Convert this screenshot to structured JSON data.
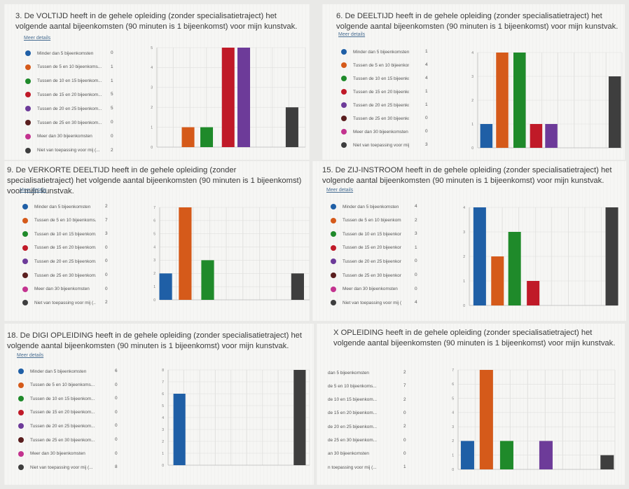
{
  "common": {
    "meer_details": "Meer details",
    "categories": [
      "Minder dan 5 bijeenkomsten",
      "Tussen de 5 en 10 bijeenkoms...",
      "Tussen de 10 en 15 bijeenkom...",
      "Tussen de 15 en 20 bijeenkom...",
      "Tussen de 20 en 25 bijeenkom...",
      "Tussen de 25 en 30 bijeenkom...",
      "Meer dan 30 bijeenkomsten",
      "Niet van toepassing voor mij (..."
    ],
    "colors": [
      "#1f5fa6",
      "#d55a1a",
      "#1f8a2a",
      "#c01a28",
      "#6d3b99",
      "#5a1e1e",
      "#c3338f",
      "#3e3e3e"
    ]
  },
  "chart_data": [
    {
      "type": "bar",
      "title": "3. De VOLTIJD heeft in de gehele opleiding (zonder specialisatietraject) het volgende aantal bijeenkomsten (90 minuten is 1 bijeenkomst) voor mijn kunstvak.",
      "categories": [
        "Minder dan 5 bijeenkomsten",
        "Tussen de 5 en 10 bijeenkoms...",
        "Tussen de 10 en 15 bijeenkom...",
        "Tussen de 15 en 20 bijeenkom...",
        "Tussen de 20 en 25 bijeenkom...",
        "Tussen de 25 en 30 bijeenkom...",
        "Meer dan 30 bijeenkomsten",
        "Niet van toepassing voor mij (..."
      ],
      "values": [
        0,
        1,
        1,
        5,
        5,
        0,
        0,
        2
      ],
      "ylim": [
        0,
        5
      ],
      "yticks": [
        "0",
        "1",
        "2",
        "3",
        "4",
        "5"
      ],
      "grid": true
    },
    {
      "type": "bar",
      "title": "6. De DEELTIJD heeft in de gehele opleiding (zonder specialisatietraject) het volgende aantal bijeenkomsten (90 minuten is 1 bijeenkomst) voor mijn kunstvak.",
      "categories": [
        "Minder dan 5 bijeenkomsten",
        "Tussen de 5 en 10 bijeenkoms...",
        "Tussen de 10 en 15 bijeenkom...",
        "Tussen de 15 en 20 bijeenkom...",
        "Tussen de 20 en 25 bijeenkom...",
        "Tussen de 25 en 30 bijeenkom...",
        "Meer dan 30 bijeenkomsten",
        "Niet van toepassing voor mij (..."
      ],
      "values": [
        1,
        4,
        4,
        1,
        1,
        0,
        0,
        3
      ],
      "ylim": [
        0,
        4
      ],
      "yticks": [
        "0",
        "1",
        "2",
        "3",
        "4"
      ],
      "grid": true
    },
    {
      "type": "bar",
      "title": "9. De VERKORTE DEELTIJD heeft in de gehele opleiding (zonder specialisatietraject) het volgende aantal bijeenkomsten (90 minuten is 1 bijeenkomst) voor mijn kunstvak.",
      "categories": [
        "Minder dan 5 bijeenkomsten",
        "Tussen de 5 en 10 bijeenkoms...",
        "Tussen de 10 en 15 bijeenkom...",
        "Tussen de 15 en 20 bijeenkom...",
        "Tussen de 20 en 25 bijeenkom...",
        "Tussen de 25 en 30 bijeenkom...",
        "Meer dan 30 bijeenkomsten",
        "Niet van toepassing voor mij (..."
      ],
      "values": [
        2,
        7,
        3,
        0,
        0,
        0,
        0,
        2
      ],
      "ylim": [
        0,
        7
      ],
      "yticks": [
        "0",
        "1",
        "2",
        "3",
        "4",
        "5",
        "6",
        "7"
      ],
      "grid": true
    },
    {
      "type": "bar",
      "title": "15. De ZIJ-INSTROOM heeft in de gehele opleiding (zonder specialisatietraject) het volgende aantal bijeenkomsten (90 minuten is 1 bijeenkomst) voor mijn kunstvak.",
      "categories": [
        "Minder dan 5 bijeenkomsten",
        "Tussen de 5 en 10 bijeenkoms...",
        "Tussen de 10 en 15 bijeenkom...",
        "Tussen de 15 en 20 bijeenkom...",
        "Tussen de 20 en 25 bijeenkom...",
        "Tussen de 25 en 30 bijeenkom...",
        "Meer dan 30 bijeenkomsten",
        "Niet van toepassing voor mij (..."
      ],
      "values": [
        4,
        2,
        3,
        1,
        0,
        0,
        0,
        4
      ],
      "ylim": [
        0,
        4
      ],
      "yticks": [
        "0",
        "1",
        "2",
        "3",
        "4"
      ],
      "grid": true
    },
    {
      "type": "bar",
      "title": "18. De DIGI OPLEIDING heeft in de gehele opleiding (zonder specialisatietraject) het volgende aantal bijeenkomsten (90 minuten is 1 bijeenkomst) voor mijn kunstvak.",
      "categories": [
        "Minder dan 5 bijeenkomsten",
        "Tussen de 5 en 10 bijeenkoms...",
        "Tussen de 10 en 15 bijeenkom...",
        "Tussen de 15 en 20 bijeenkom...",
        "Tussen de 20 en 25 bijeenkom...",
        "Tussen de 25 en 30 bijeenkom...",
        "Meer dan 30 bijeenkomsten",
        "Niet van toepassing voor mij (..."
      ],
      "values": [
        6,
        0,
        0,
        0,
        0,
        0,
        0,
        8
      ],
      "ylim": [
        0,
        8
      ],
      "yticks": [
        "0",
        "1",
        "2",
        "3",
        "4",
        "5",
        "6",
        "7",
        "8"
      ],
      "grid": true
    },
    {
      "type": "bar",
      "title": "X OPLEIDING heeft in de gehele opleiding (zonder specialisatietraject) het volgende aantal bijeenkomsten (90 minuten is 1 bijeenkomst) voor mijn kunstvak.",
      "categories": [
        "dan 5 bijeenkomsten",
        "de 5 en 10 bijeenkoms...",
        "de 10 en 15 bijeenkom...",
        "de 15 en 20 bijeenkom...",
        "de 20 en 25 bijeenkom...",
        "de 25 en 30 bijeenkom...",
        "an 30 bijeenkomsten",
        "n toepassing voor mij (..."
      ],
      "values": [
        2,
        7,
        2,
        0,
        2,
        0,
        0,
        1
      ],
      "ylim": [
        0,
        7
      ],
      "yticks": [
        "0",
        "1",
        "2",
        "3",
        "4",
        "5",
        "6",
        "7"
      ],
      "grid": true
    }
  ]
}
